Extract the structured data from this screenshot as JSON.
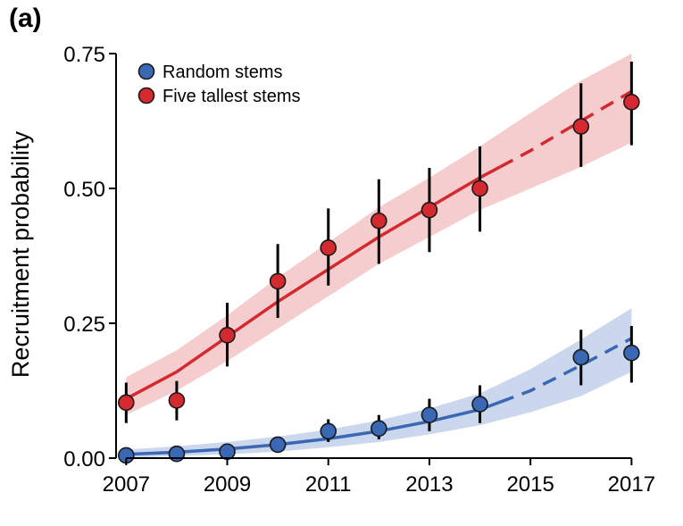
{
  "panel_label": "(a)",
  "chart_data": {
    "type": "scatter",
    "title": "",
    "xlabel": "",
    "ylabel": "Recruitment probability",
    "xlim": [
      2006.8,
      2017.4
    ],
    "ylim": [
      0,
      0.75
    ],
    "xticks": [
      2007,
      2009,
      2011,
      2013,
      2015,
      2017
    ],
    "xtick_labels": [
      "2007",
      "2009",
      "2011",
      "2013",
      "2015",
      "2017"
    ],
    "yticks": [
      0,
      0.25,
      0.5,
      0.75
    ],
    "ytick_labels": [
      "0.00",
      "0.25",
      "0.50",
      "0.75"
    ],
    "grid": false,
    "legend_position": "top-left",
    "series": [
      {
        "name": "Random stems",
        "color": "#3a68b4",
        "band_color": "#b9c9e6",
        "points": [
          {
            "x": 2007,
            "y": 0.005,
            "low": 0.0,
            "high": 0.01
          },
          {
            "x": 2008,
            "y": 0.008,
            "low": 0.003,
            "high": 0.013
          },
          {
            "x": 2009,
            "y": 0.012,
            "low": 0.006,
            "high": 0.02
          },
          {
            "x": 2010,
            "y": 0.025,
            "low": 0.012,
            "high": 0.038
          },
          {
            "x": 2011,
            "y": 0.05,
            "low": 0.03,
            "high": 0.072
          },
          {
            "x": 2012,
            "y": 0.055,
            "low": 0.035,
            "high": 0.08
          },
          {
            "x": 2013,
            "y": 0.08,
            "low": 0.05,
            "high": 0.11
          },
          {
            "x": 2014,
            "y": 0.1,
            "low": 0.065,
            "high": 0.135
          },
          {
            "x": 2016,
            "y": 0.187,
            "low": 0.135,
            "high": 0.238
          },
          {
            "x": 2017,
            "y": 0.195,
            "low": 0.14,
            "high": 0.245
          }
        ],
        "fit": [
          {
            "x": 2007,
            "y": 0.007,
            "low": 0.0,
            "high": 0.016
          },
          {
            "x": 2008,
            "y": 0.011,
            "low": 0.004,
            "high": 0.022
          },
          {
            "x": 2009,
            "y": 0.017,
            "low": 0.007,
            "high": 0.03
          },
          {
            "x": 2010,
            "y": 0.025,
            "low": 0.012,
            "high": 0.04
          },
          {
            "x": 2011,
            "y": 0.036,
            "low": 0.02,
            "high": 0.053
          },
          {
            "x": 2012,
            "y": 0.05,
            "low": 0.03,
            "high": 0.07
          },
          {
            "x": 2013,
            "y": 0.068,
            "low": 0.044,
            "high": 0.092
          },
          {
            "x": 2014,
            "y": 0.09,
            "low": 0.061,
            "high": 0.12
          },
          {
            "x": 2015,
            "y": 0.125,
            "low": 0.085,
            "high": 0.165
          },
          {
            "x": 2016,
            "y": 0.172,
            "low": 0.115,
            "high": 0.22
          },
          {
            "x": 2017,
            "y": 0.222,
            "low": 0.16,
            "high": 0.278
          }
        ],
        "observed_until": 2014.4
      },
      {
        "name": "Five tallest stems",
        "color": "#d42a2f",
        "band_color": "#f1bcbe",
        "points": [
          {
            "x": 2007,
            "y": 0.103,
            "low": 0.065,
            "high": 0.14
          },
          {
            "x": 2008,
            "y": 0.107,
            "low": 0.07,
            "high": 0.143
          },
          {
            "x": 2009,
            "y": 0.228,
            "low": 0.17,
            "high": 0.288
          },
          {
            "x": 2010,
            "y": 0.328,
            "low": 0.26,
            "high": 0.397
          },
          {
            "x": 2011,
            "y": 0.39,
            "low": 0.32,
            "high": 0.463
          },
          {
            "x": 2012,
            "y": 0.44,
            "low": 0.36,
            "high": 0.517
          },
          {
            "x": 2013,
            "y": 0.46,
            "low": 0.382,
            "high": 0.538
          },
          {
            "x": 2014,
            "y": 0.5,
            "low": 0.42,
            "high": 0.578
          },
          {
            "x": 2016,
            "y": 0.615,
            "low": 0.54,
            "high": 0.695
          },
          {
            "x": 2017,
            "y": 0.66,
            "low": 0.58,
            "high": 0.735
          }
        ],
        "fit": [
          {
            "x": 2007,
            "y": 0.11,
            "low": 0.08,
            "high": 0.15
          },
          {
            "x": 2008,
            "y": 0.16,
            "low": 0.125,
            "high": 0.2
          },
          {
            "x": 2009,
            "y": 0.225,
            "low": 0.18,
            "high": 0.265
          },
          {
            "x": 2010,
            "y": 0.29,
            "low": 0.24,
            "high": 0.335
          },
          {
            "x": 2011,
            "y": 0.35,
            "low": 0.3,
            "high": 0.4
          },
          {
            "x": 2012,
            "y": 0.41,
            "low": 0.36,
            "high": 0.465
          },
          {
            "x": 2013,
            "y": 0.465,
            "low": 0.41,
            "high": 0.52
          },
          {
            "x": 2014,
            "y": 0.52,
            "low": 0.46,
            "high": 0.578
          },
          {
            "x": 2015,
            "y": 0.57,
            "low": 0.5,
            "high": 0.64
          },
          {
            "x": 2016,
            "y": 0.625,
            "low": 0.54,
            "high": 0.7
          },
          {
            "x": 2017,
            "y": 0.68,
            "low": 0.585,
            "high": 0.75
          }
        ],
        "observed_until": 2014.4
      }
    ]
  }
}
